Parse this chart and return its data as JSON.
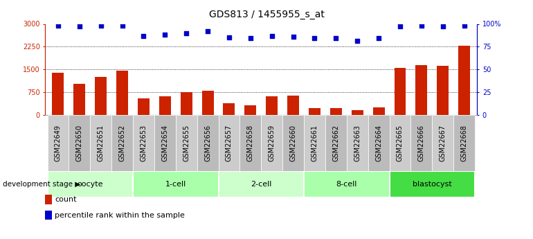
{
  "title": "GDS813 / 1455955_s_at",
  "samples": [
    "GSM22649",
    "GSM22650",
    "GSM22651",
    "GSM22652",
    "GSM22653",
    "GSM22654",
    "GSM22655",
    "GSM22656",
    "GSM22657",
    "GSM22658",
    "GSM22659",
    "GSM22660",
    "GSM22661",
    "GSM22662",
    "GSM22663",
    "GSM22664",
    "GSM22665",
    "GSM22666",
    "GSM22667",
    "GSM22668"
  ],
  "counts": [
    1380,
    1020,
    1250,
    1460,
    530,
    620,
    740,
    800,
    370,
    310,
    610,
    640,
    220,
    230,
    150,
    250,
    1550,
    1630,
    1620,
    2280
  ],
  "percentiles": [
    98,
    97,
    98,
    98,
    87,
    88,
    90,
    92,
    85,
    84,
    87,
    86,
    84,
    84,
    81,
    84,
    97,
    98,
    97,
    98
  ],
  "groups": [
    {
      "name": "oocyte",
      "start": 0,
      "end": 4,
      "color": "#ccffcc"
    },
    {
      "name": "1-cell",
      "start": 4,
      "end": 8,
      "color": "#aaffaa"
    },
    {
      "name": "2-cell",
      "start": 8,
      "end": 12,
      "color": "#ccffcc"
    },
    {
      "name": "8-cell",
      "start": 12,
      "end": 16,
      "color": "#aaffaa"
    },
    {
      "name": "blastocyst",
      "start": 16,
      "end": 20,
      "color": "#44dd44"
    }
  ],
  "bar_color": "#cc2200",
  "dot_color": "#0000cc",
  "ylim_left": [
    0,
    3000
  ],
  "ylim_right": [
    0,
    100
  ],
  "yticks_left": [
    0,
    750,
    1500,
    2250,
    3000
  ],
  "yticks_right": [
    0,
    25,
    50,
    75,
    100
  ],
  "yticklabels_right": [
    "0",
    "25",
    "50",
    "75",
    "100%"
  ],
  "grid_values": [
    750,
    1500,
    2250
  ],
  "legend_count_label": "count",
  "legend_pct_label": "percentile rank within the sample",
  "dev_stage_label": "development stage",
  "bar_width": 0.55,
  "title_fontsize": 10,
  "tick_fontsize": 7,
  "group_label_fontsize": 8,
  "sample_bg_color": "#cccccc",
  "sample_alt_bg_color": "#bbbbbb"
}
